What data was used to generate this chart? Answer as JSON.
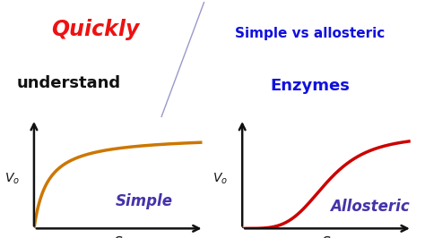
{
  "bg_color": "#ffffff",
  "title_left_bold": "Quickly",
  "title_left_bold_color": "#ee1111",
  "title_left_normal": "understand",
  "title_left_normal_color": "#111111",
  "title_right_line1": "Simple vs allosteric",
  "title_right_line2": "Enzymes",
  "title_right_color": "#1111dd",
  "label_simple": "Simple",
  "label_allosteric": "Allosteric",
  "label_color": "#4433aa",
  "s_label": "S",
  "curve_simple_color": "#cc7700",
  "curve_allosteric_color": "#cc0000",
  "axis_color": "#111111",
  "divider_color": "#9999cc",
  "Vmax_simple": 8.5,
  "Km_simple": 0.8,
  "Vmax_allosteric": 8.5,
  "K_half_allosteric": 5.0,
  "n_hill": 4,
  "xlim": [
    0,
    10
  ],
  "ylim": [
    0,
    10
  ]
}
